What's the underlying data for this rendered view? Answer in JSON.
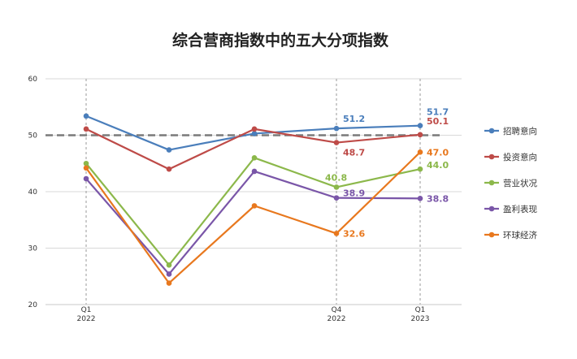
{
  "chart_data": {
    "type": "line",
    "title": "综合营商指数中的五大分项指数",
    "xlabel": "",
    "ylabel": "",
    "ylim": [
      20,
      60
    ],
    "yticks": [
      20,
      30,
      40,
      50,
      60
    ],
    "grid": true,
    "legend_position": "right",
    "reference_line": 50,
    "x_count": 5,
    "x_ticks": [
      {
        "index": 0,
        "line1": "Q1",
        "line2": "2022"
      },
      {
        "index": 3,
        "line1": "Q4",
        "line2": "2022"
      },
      {
        "index": 4,
        "line1": "Q1",
        "line2": "2023"
      }
    ],
    "series": [
      {
        "name": "招聘意向",
        "color": "#4a7ebb",
        "values": [
          53.4,
          47.4,
          50.3,
          51.2,
          51.7
        ],
        "labels": {
          "3": "51.2",
          "4": "51.7"
        }
      },
      {
        "name": "投资意向",
        "color": "#be4b48",
        "values": [
          51.1,
          44.0,
          51.1,
          48.7,
          50.1
        ],
        "labels": {
          "3": "48.7",
          "4": "50.1"
        }
      },
      {
        "name": "营业状况",
        "color": "#8cb84b",
        "values": [
          45.0,
          27.0,
          46.0,
          40.8,
          44.0
        ],
        "labels": {
          "3": "40.8",
          "4": "44.0"
        }
      },
      {
        "name": "盈利表现",
        "color": "#7a56a8",
        "values": [
          42.3,
          25.4,
          43.6,
          38.9,
          38.8
        ],
        "labels": {
          "3": "38.9",
          "4": "38.8"
        }
      },
      {
        "name": "环球经济",
        "color": "#e8781e",
        "values": [
          44.2,
          23.8,
          37.5,
          32.6,
          47.0
        ],
        "labels": {
          "3": "32.6",
          "4": "47.0"
        }
      }
    ]
  }
}
